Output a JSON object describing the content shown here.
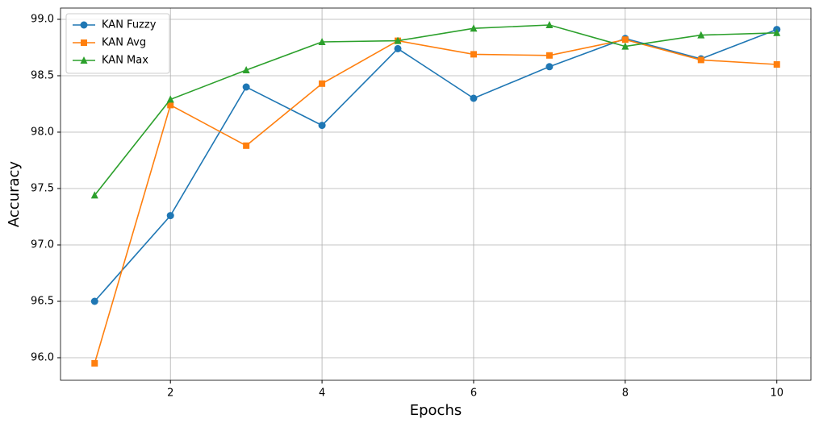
{
  "chart_data": {
    "type": "line",
    "x_label": "Epochs",
    "y_label": "Accuracy",
    "x": [
      1,
      2,
      3,
      4,
      5,
      6,
      7,
      8,
      9,
      10
    ],
    "series": [
      {
        "name": "KAN Fuzzy",
        "color": "#1f77b4",
        "marker": "circle",
        "values": [
          96.5,
          97.26,
          98.4,
          98.06,
          98.74,
          98.3,
          98.58,
          98.83,
          98.65,
          98.91
        ]
      },
      {
        "name": "KAN Avg",
        "color": "#ff7f0e",
        "marker": "square",
        "values": [
          95.95,
          98.24,
          97.88,
          98.43,
          98.81,
          98.69,
          98.68,
          98.82,
          98.64,
          98.6
        ]
      },
      {
        "name": "KAN Max",
        "color": "#2ca02c",
        "marker": "triangle",
        "values": [
          97.44,
          98.29,
          98.55,
          98.8,
          98.81,
          98.92,
          98.95,
          98.76,
          98.86,
          98.88
        ]
      }
    ],
    "xlim": [
      0.55,
      10.45
    ],
    "xticks": [
      2,
      4,
      6,
      8,
      10
    ],
    "ylim": [
      95.8,
      99.1
    ],
    "yticks": [
      {
        "value": 96,
        "label": "96.0"
      },
      {
        "value": 96.5,
        "label": "96.5"
      },
      {
        "value": 97,
        "label": "97.0"
      },
      {
        "value": 97.5,
        "label": "97.5"
      },
      {
        "value": 98,
        "label": "98.0"
      },
      {
        "value": 98.5,
        "label": "98.5"
      },
      {
        "value": 99,
        "label": "99.0"
      }
    ],
    "grid": true,
    "legend": "upper-left"
  }
}
